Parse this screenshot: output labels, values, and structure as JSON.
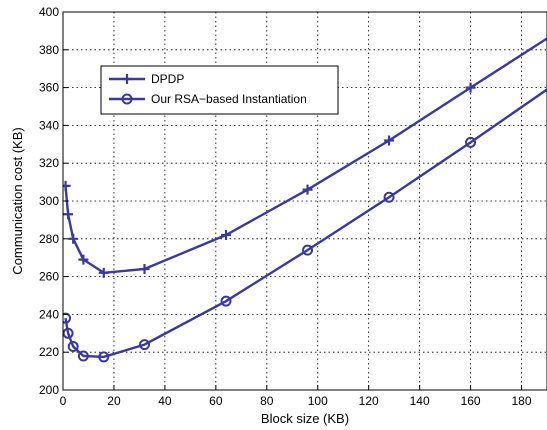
{
  "chart_data": {
    "type": "line",
    "title": "",
    "xlabel": "Block size (KB)",
    "ylabel": "Communication cost (KB)",
    "xlim": [
      0,
      190
    ],
    "ylim": [
      200,
      400
    ],
    "xticks": [
      0,
      20,
      40,
      60,
      80,
      100,
      120,
      140,
      160,
      180
    ],
    "yticks": [
      200,
      220,
      240,
      260,
      280,
      300,
      320,
      340,
      360,
      380,
      400
    ],
    "grid": true,
    "legend_position": "upper-left",
    "line_color": "#3a3a9a",
    "series": [
      {
        "name": "DPDP",
        "marker": "plus",
        "x": [
          1,
          2,
          4,
          8,
          16,
          32,
          64,
          96,
          128,
          160,
          190
        ],
        "y": [
          308,
          293,
          280,
          269,
          262,
          264,
          282,
          306,
          332,
          360,
          386
        ]
      },
      {
        "name": "Our RSA−based Instantiation",
        "marker": "circle",
        "x": [
          1,
          2,
          4,
          8,
          16,
          32,
          64,
          96,
          128,
          160,
          190
        ],
        "y": [
          238,
          230,
          223,
          218,
          217.5,
          224,
          247,
          274,
          302,
          331,
          359
        ]
      }
    ]
  }
}
